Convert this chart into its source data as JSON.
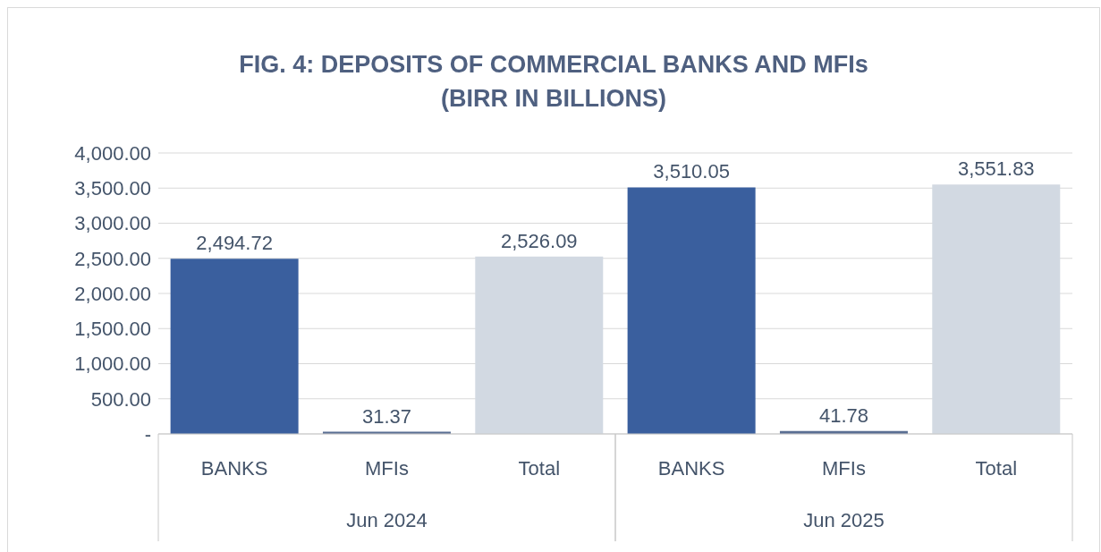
{
  "chart_data": {
    "type": "bar",
    "title": "FIG. 4: DEPOSITS OF COMMERCIAL BANKS AND MFIs",
    "subtitle": "(BIRR IN BILLIONS)",
    "categories": [
      "BANKS",
      "MFIs",
      "Total",
      "BANKS",
      "MFIs",
      "Total"
    ],
    "values": [
      2494.72,
      31.37,
      2526.09,
      3510.05,
      41.78,
      3551.83
    ],
    "colors": [
      "#3a5f9e",
      "#5a6f93",
      "#d2d9e2",
      "#3a5f9e",
      "#5a6f93",
      "#d2d9e2"
    ],
    "annotations": [
      "Jun 2024",
      "Jun 2025"
    ],
    "ylim": [
      0,
      4000
    ],
    "yticks": [
      {
        "value": 0,
        "label": "-"
      },
      {
        "value": 500,
        "label": "500.00"
      },
      {
        "value": 1000,
        "label": "1,000.00"
      },
      {
        "value": 1500,
        "label": "1,500.00"
      },
      {
        "value": 2000,
        "label": "2,000.00"
      },
      {
        "value": 2500,
        "label": "2,500.00"
      },
      {
        "value": 3000,
        "label": "3,000.00"
      },
      {
        "value": 3500,
        "label": "3,500.00"
      },
      {
        "value": 4000,
        "label": "4,000.00"
      }
    ],
    "value_labels": [
      "2,494.72",
      "31.37",
      "2,526.09",
      "3,510.05",
      "41.78",
      "3,551.83"
    ],
    "grid": "y",
    "legend": false
  }
}
